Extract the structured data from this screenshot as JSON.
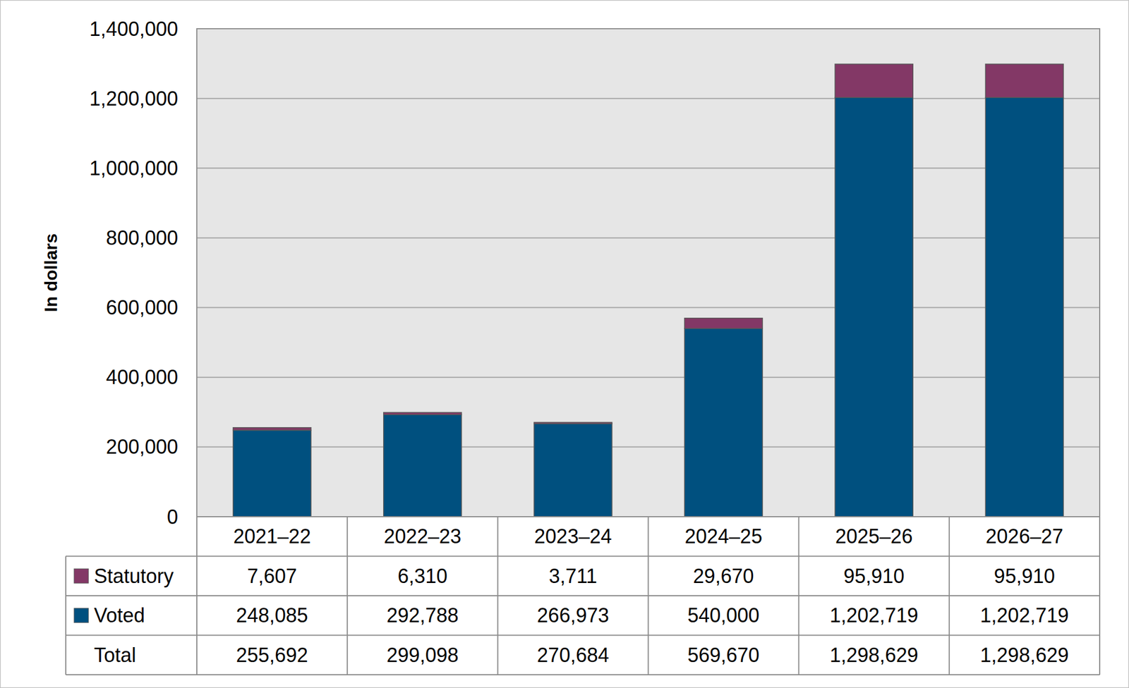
{
  "chart_data": {
    "type": "bar",
    "stacked": true,
    "grid": true,
    "y_label": "In dollars",
    "categories": [
      "2021–22",
      "2022–23",
      "2023–24",
      "2024–25",
      "2025–26",
      "2026–27"
    ],
    "series": [
      {
        "name": "Statutory",
        "color": "#833866",
        "values": [
          7607,
          6310,
          3711,
          29670,
          95910,
          95910
        ],
        "value_labels": [
          "7,607",
          "6,310",
          "3,711",
          "29,670",
          "95,910",
          "95,910"
        ]
      },
      {
        "name": "Voted",
        "color": "#00507f",
        "values": [
          248085,
          292788,
          266973,
          540000,
          1202719,
          1202719
        ],
        "value_labels": [
          "248,085",
          "292,788",
          "266,973",
          "540,000",
          "1,202,719",
          "1,202,719"
        ]
      }
    ],
    "total": {
      "name": "Total",
      "values": [
        255692,
        299098,
        270684,
        569670,
        1298629,
        1298629
      ],
      "value_labels": [
        "255,692",
        "299,098",
        "270,684",
        "569,670",
        "1,298,629",
        "1,298,629"
      ]
    },
    "ylim": [
      0,
      1400000
    ],
    "yticks": [
      0,
      {
        "value": 200000,
        "label": "200,000"
      },
      {
        "value": 400000,
        "label": "400,000"
      },
      {
        "value": 600000,
        "label": "600,000"
      },
      {
        "value": 800000,
        "label": "800,000"
      },
      {
        "value": 1000000,
        "label": "1,000,000"
      },
      {
        "value": 1200000,
        "label": "1,200,000"
      },
      {
        "value": 1400000,
        "label": "1,400,000"
      }
    ]
  }
}
